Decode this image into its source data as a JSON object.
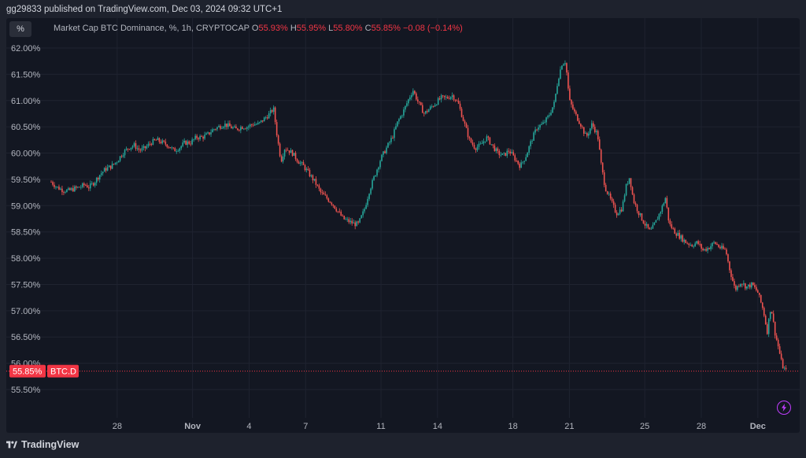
{
  "header": {
    "published_text": "gg29833 published on TradingView.com, Dec 03, 2024 09:32 UTC+1"
  },
  "toolbar": {
    "percent_label": "%"
  },
  "legend": {
    "title": "Market Cap BTC Dominance, %, 1h, CRYPTOCAP",
    "o_key": "O",
    "o_val": "55.93%",
    "h_key": "H",
    "h_val": "55.95%",
    "l_key": "L",
    "l_val": "55.80%",
    "c_key": "C",
    "c_val": "55.85%",
    "change": "−0.08 (−0.14%)"
  },
  "price_tag": {
    "value": "55.85%",
    "symbol": "BTC.D"
  },
  "footer": {
    "brand": "TradingView"
  },
  "colors": {
    "up": "#26a69a",
    "down": "#ef5350",
    "grid": "#1f2330",
    "axis_text": "#b2b5be",
    "price_tag": "#f23645"
  },
  "chart_data": {
    "type": "candlestick",
    "title": "Market Cap BTC Dominance, %, 1h, CRYPTOCAP",
    "ylabel": "",
    "xlabel": "",
    "ylim": [
      55.2,
      62.1
    ],
    "y_ticks": [
      "62.00%",
      "61.50%",
      "61.00%",
      "60.50%",
      "60.00%",
      "59.50%",
      "59.00%",
      "58.50%",
      "58.00%",
      "57.50%",
      "57.00%",
      "56.50%",
      "56.00%",
      "55.50%"
    ],
    "y_tick_values": [
      62.0,
      61.5,
      61.0,
      60.5,
      60.0,
      59.5,
      59.0,
      58.5,
      58.0,
      57.5,
      57.0,
      56.5,
      56.0,
      55.5
    ],
    "x_ticks": [
      "28",
      "Nov",
      "4",
      "7",
      "11",
      "14",
      "18",
      "21",
      "25",
      "28",
      "Dec",
      "4"
    ],
    "x_tick_days": [
      2,
      6,
      9,
      12,
      16,
      19,
      23,
      26,
      30,
      33,
      36,
      39
    ],
    "x_range_days": [
      0,
      39.1
    ],
    "last_price": 55.85,
    "grid": true,
    "series": [
      {
        "points": [
          [
            0.0,
            59.45
          ],
          [
            0.3,
            59.35
          ],
          [
            0.6,
            59.3
          ],
          [
            0.9,
            59.28
          ],
          [
            1.2,
            59.32
          ],
          [
            1.5,
            59.35
          ],
          [
            1.8,
            59.4
          ],
          [
            2.0,
            59.35
          ],
          [
            2.3,
            59.45
          ],
          [
            2.6,
            59.6
          ],
          [
            2.9,
            59.7
          ],
          [
            3.2,
            59.75
          ],
          [
            3.5,
            59.85
          ],
          [
            3.8,
            60.0
          ],
          [
            4.1,
            60.1
          ],
          [
            4.4,
            60.15
          ],
          [
            4.7,
            60.05
          ],
          [
            5.0,
            60.1
          ],
          [
            5.3,
            60.2
          ],
          [
            5.6,
            60.25
          ],
          [
            5.9,
            60.2
          ],
          [
            6.2,
            60.15
          ],
          [
            6.5,
            60.05
          ],
          [
            6.8,
            60.1
          ],
          [
            7.1,
            60.2
          ],
          [
            7.4,
            60.2
          ],
          [
            7.7,
            60.3
          ],
          [
            8.0,
            60.3
          ],
          [
            8.3,
            60.35
          ],
          [
            8.6,
            60.45
          ],
          [
            8.9,
            60.5
          ],
          [
            9.2,
            60.55
          ],
          [
            9.5,
            60.5
          ],
          [
            9.8,
            60.45
          ],
          [
            10.1,
            60.5
          ],
          [
            10.4,
            60.5
          ],
          [
            10.7,
            60.55
          ],
          [
            11.0,
            60.55
          ],
          [
            11.3,
            60.65
          ],
          [
            11.6,
            60.75
          ],
          [
            11.8,
            60.85
          ],
          [
            12.0,
            60.3
          ],
          [
            12.2,
            59.85
          ],
          [
            12.4,
            60.1
          ],
          [
            12.6,
            60.05
          ],
          [
            12.8,
            60.0
          ],
          [
            13.1,
            59.85
          ],
          [
            13.4,
            59.75
          ],
          [
            13.7,
            59.6
          ],
          [
            14.0,
            59.45
          ],
          [
            14.3,
            59.25
          ],
          [
            14.6,
            59.15
          ],
          [
            14.9,
            59.05
          ],
          [
            15.2,
            58.9
          ],
          [
            15.5,
            58.75
          ],
          [
            15.8,
            58.7
          ],
          [
            16.1,
            58.65
          ],
          [
            16.3,
            58.65
          ],
          [
            16.6,
            58.9
          ],
          [
            16.9,
            59.3
          ],
          [
            17.2,
            59.6
          ],
          [
            17.5,
            59.9
          ],
          [
            17.8,
            60.1
          ],
          [
            18.1,
            60.3
          ],
          [
            18.4,
            60.6
          ],
          [
            18.7,
            60.8
          ],
          [
            19.0,
            61.05
          ],
          [
            19.2,
            61.2
          ],
          [
            19.5,
            60.95
          ],
          [
            19.8,
            60.75
          ],
          [
            20.1,
            60.85
          ],
          [
            20.4,
            60.95
          ],
          [
            20.7,
            61.05
          ],
          [
            21.0,
            61.05
          ],
          [
            21.3,
            61.1
          ],
          [
            21.6,
            60.95
          ],
          [
            21.9,
            60.6
          ],
          [
            22.2,
            60.25
          ],
          [
            22.5,
            60.1
          ],
          [
            22.8,
            60.15
          ],
          [
            23.1,
            60.3
          ],
          [
            23.4,
            60.15
          ],
          [
            23.7,
            60.0
          ],
          [
            24.0,
            59.95
          ],
          [
            24.3,
            60.05
          ],
          [
            24.6,
            59.9
          ],
          [
            24.9,
            59.75
          ],
          [
            25.2,
            59.95
          ],
          [
            25.5,
            60.25
          ],
          [
            25.8,
            60.5
          ],
          [
            26.1,
            60.55
          ],
          [
            26.4,
            60.7
          ],
          [
            26.7,
            60.95
          ],
          [
            26.9,
            61.4
          ],
          [
            27.1,
            61.7
          ],
          [
            27.3,
            61.75
          ],
          [
            27.5,
            61.0
          ],
          [
            27.8,
            60.75
          ],
          [
            28.1,
            60.55
          ],
          [
            28.4,
            60.3
          ],
          [
            28.7,
            60.55
          ],
          [
            29.0,
            60.35
          ],
          [
            29.2,
            59.75
          ],
          [
            29.4,
            59.35
          ],
          [
            29.7,
            59.1
          ],
          [
            30.0,
            58.85
          ],
          [
            30.3,
            58.95
          ],
          [
            30.5,
            59.35
          ],
          [
            30.7,
            59.55
          ],
          [
            30.9,
            59.1
          ],
          [
            31.2,
            58.85
          ],
          [
            31.5,
            58.65
          ],
          [
            31.8,
            58.5
          ],
          [
            32.1,
            58.7
          ],
          [
            32.4,
            58.95
          ],
          [
            32.6,
            59.15
          ],
          [
            32.8,
            58.65
          ],
          [
            33.1,
            58.5
          ],
          [
            33.4,
            58.4
          ],
          [
            33.7,
            58.3
          ],
          [
            34.0,
            58.25
          ],
          [
            34.3,
            58.3
          ],
          [
            34.6,
            58.15
          ],
          [
            34.9,
            58.2
          ],
          [
            35.2,
            58.3
          ],
          [
            35.5,
            58.2
          ],
          [
            35.8,
            58.15
          ],
          [
            36.0,
            57.8
          ],
          [
            36.3,
            57.4
          ],
          [
            36.6,
            57.55
          ],
          [
            36.9,
            57.45
          ],
          [
            37.2,
            57.5
          ],
          [
            37.5,
            57.35
          ],
          [
            37.8,
            57.0
          ],
          [
            38.0,
            56.6
          ],
          [
            38.2,
            57.1
          ],
          [
            38.4,
            56.6
          ],
          [
            38.6,
            56.3
          ],
          [
            38.8,
            55.95
          ],
          [
            39.0,
            55.85
          ]
        ]
      }
    ]
  }
}
